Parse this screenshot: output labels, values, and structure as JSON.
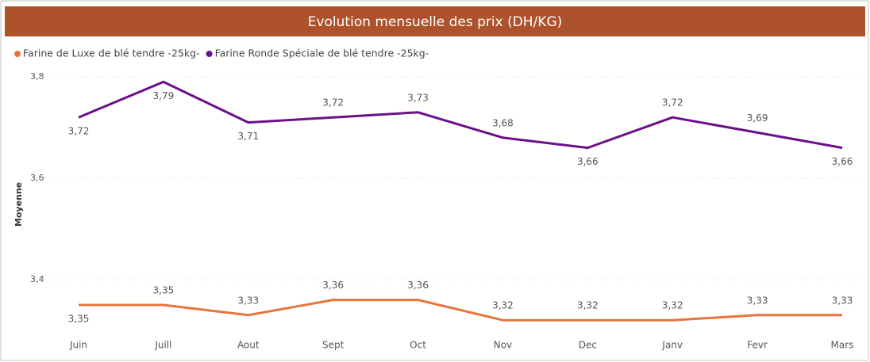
{
  "chart_data": {
    "type": "line",
    "title": "Evolution mensuelle des prix (DH/KG)",
    "y_label": "Moyenne",
    "categories": [
      "Juin",
      "Juill",
      "Aout",
      "Sept",
      "Oct",
      "Nov",
      "Dec",
      "Janv",
      "Fevr",
      "Mars"
    ],
    "series": [
      {
        "name": "Farine de Luxe de blé tendre -25kg-",
        "color": "#e8743b",
        "values": [
          3.35,
          3.35,
          3.33,
          3.36,
          3.36,
          3.32,
          3.32,
          3.32,
          3.33,
          3.33
        ],
        "value_labels": [
          "3,35",
          "3,35",
          "3,33",
          "3,36",
          "3,36",
          "3,32",
          "3,32",
          "3,32",
          "3,33",
          "3,33"
        ]
      },
      {
        "name": "Farine Ronde Spéciale de blé tendre -25kg-",
        "color": "#6b0f8a",
        "values": [
          3.72,
          3.79,
          3.71,
          3.72,
          3.73,
          3.68,
          3.66,
          3.72,
          3.69,
          3.66
        ],
        "value_labels": [
          "3,72",
          "3,79",
          "3,71",
          "3,72",
          "3,73",
          "3,68",
          "3,66",
          "3,72",
          "3,69",
          "3,66"
        ]
      }
    ],
    "ylim": [
      3.3,
      3.8
    ],
    "yticks": [
      {
        "value": 3.4,
        "label": "3,4"
      },
      {
        "value": 3.6,
        "label": "3,6"
      },
      {
        "value": 3.8,
        "label": "3,8"
      }
    ],
    "grid": true
  }
}
